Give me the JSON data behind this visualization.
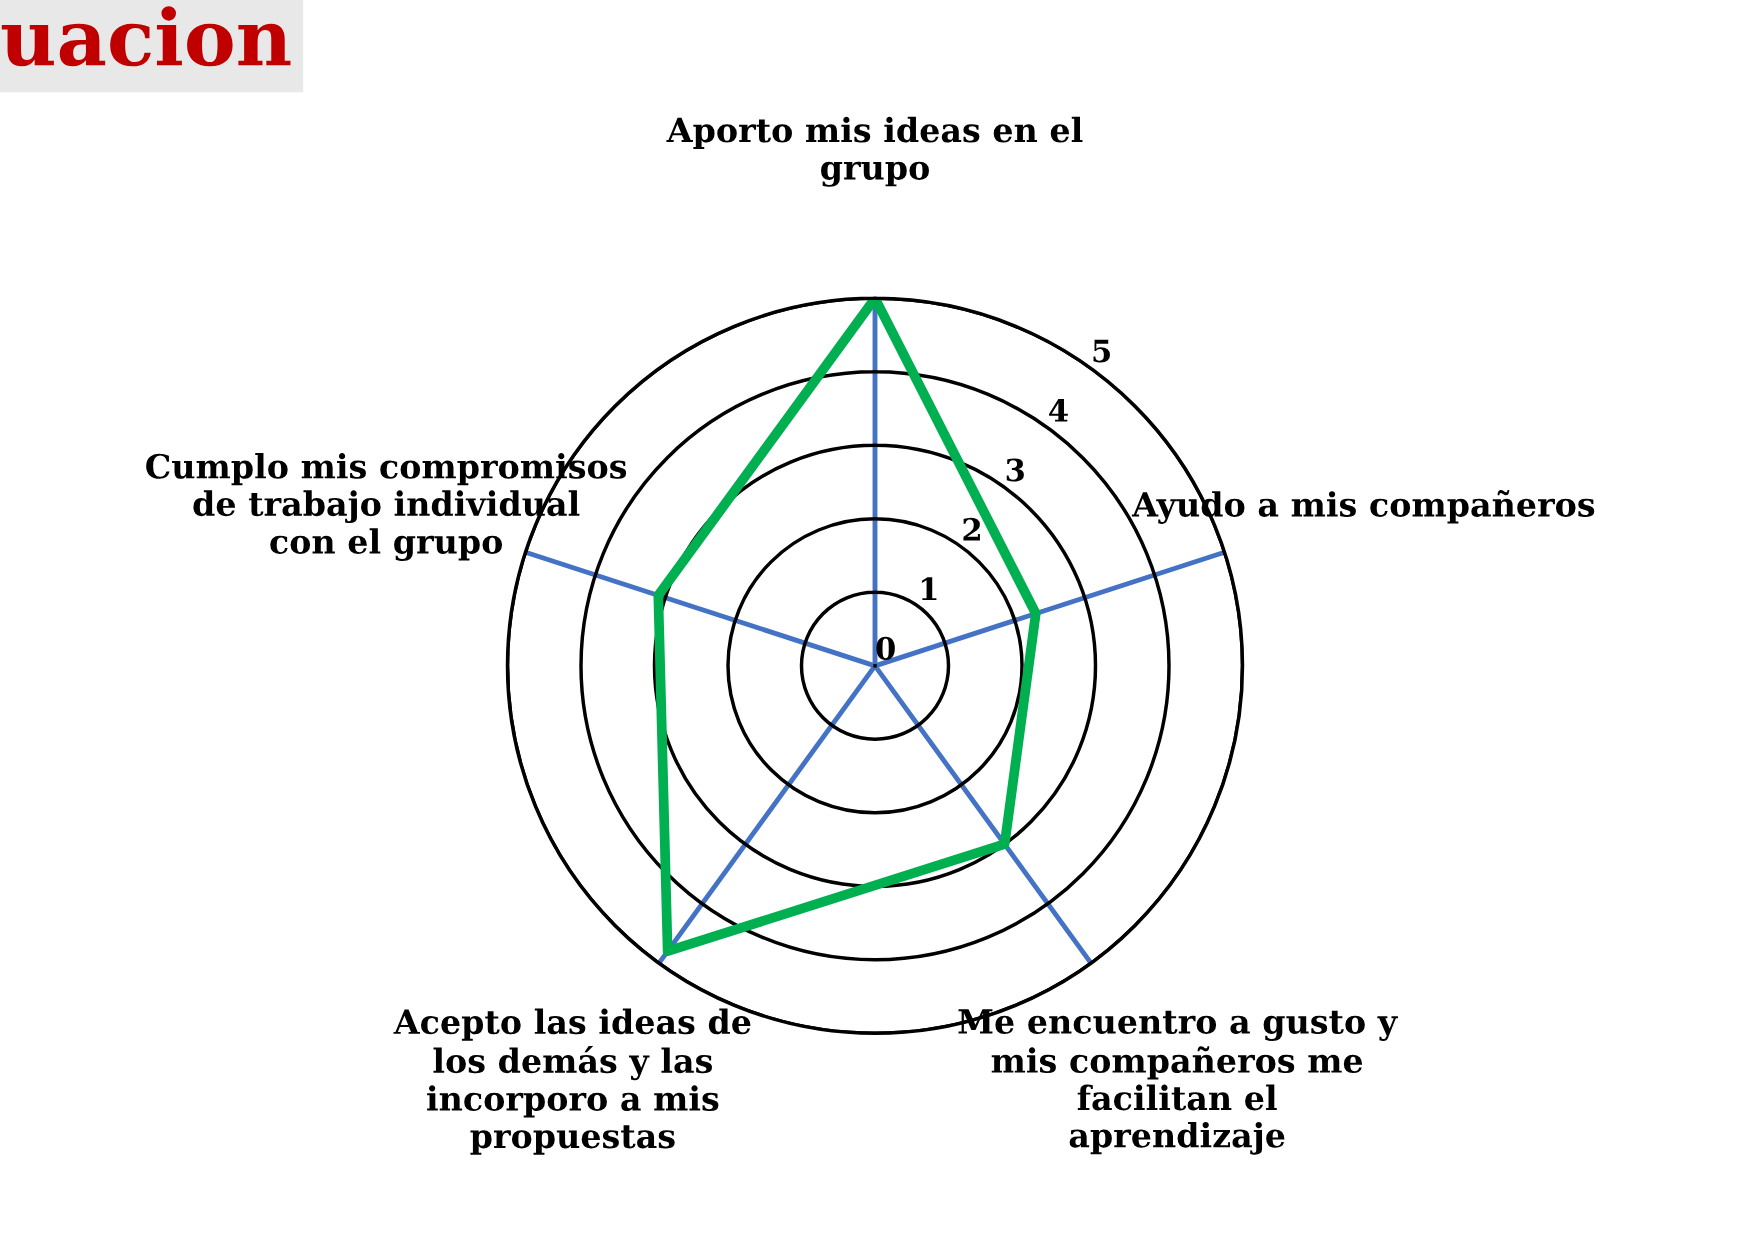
{
  "chart_data": {
    "type": "radar",
    "title": "uacion",
    "categories": [
      "Aporto mis ideas en el grupo",
      "Ayudo a mis compañeros",
      "Me encuentro a gusto y mis compañeros me facilitan el aprendizaje",
      "Acepto las ideas de los demás y las incorporo a mis propuestas",
      "Cumplo mis compromisos de trabajo individual con el grupo"
    ],
    "series": [
      {
        "color": "#00b050",
        "values": [
          5,
          2.3,
          3,
          4.8,
          3.1
        ]
      }
    ],
    "ylim": [
      0,
      5
    ],
    "yticks": [
      0,
      1,
      2,
      3,
      4,
      5
    ],
    "grid": true,
    "legend": false
  }
}
